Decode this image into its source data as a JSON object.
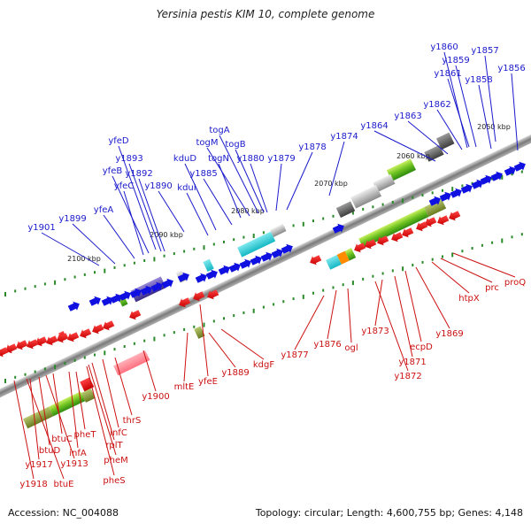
{
  "title": "Yersinia pestis KIM 10, complete genome",
  "footer": {
    "accession": "Accession: NC_004088",
    "topology": "Topology: circular; Length: 4,600,755 bp; Genes: 4,148"
  },
  "colors": {
    "forward_label": "#1a1acc",
    "reverse_label": "#cc1111",
    "backbone": "#8c8c8c",
    "tick": "#2a8a2a"
  },
  "scale_labels": [
    "2050 kbp",
    "2060 kbp",
    "2070 kbp",
    "2080 kbp",
    "2090 kbp",
    "2100 kbp"
  ],
  "forward_genes": [
    "y1860",
    "y1857",
    "y1859",
    "y1856",
    "y1861",
    "y1858",
    "y1862",
    "y1863",
    "y1864",
    "y1874",
    "togA",
    "togM",
    "togB",
    "y1878",
    "kduD",
    "togN",
    "y1880",
    "y1879",
    "yfeD",
    "y1893",
    "yfeB",
    "y1892",
    "y1885",
    "yfeC",
    "y1890",
    "kduI",
    "yfeA",
    "y1899",
    "y1901"
  ],
  "reverse_genes": [
    "proQ",
    "prc",
    "htpX",
    "y1869",
    "ecpD",
    "y1871",
    "y1873",
    "y1872",
    "ogl",
    "y1876",
    "y1877",
    "kdgF",
    "y1889",
    "yfeE",
    "mltE",
    "y1900",
    "thrS",
    "infC",
    "rplT",
    "pheM",
    "pheS",
    "pheT",
    "infA",
    "btuC",
    "y1913",
    "btuD",
    "y1917",
    "btuE",
    "y1918"
  ]
}
